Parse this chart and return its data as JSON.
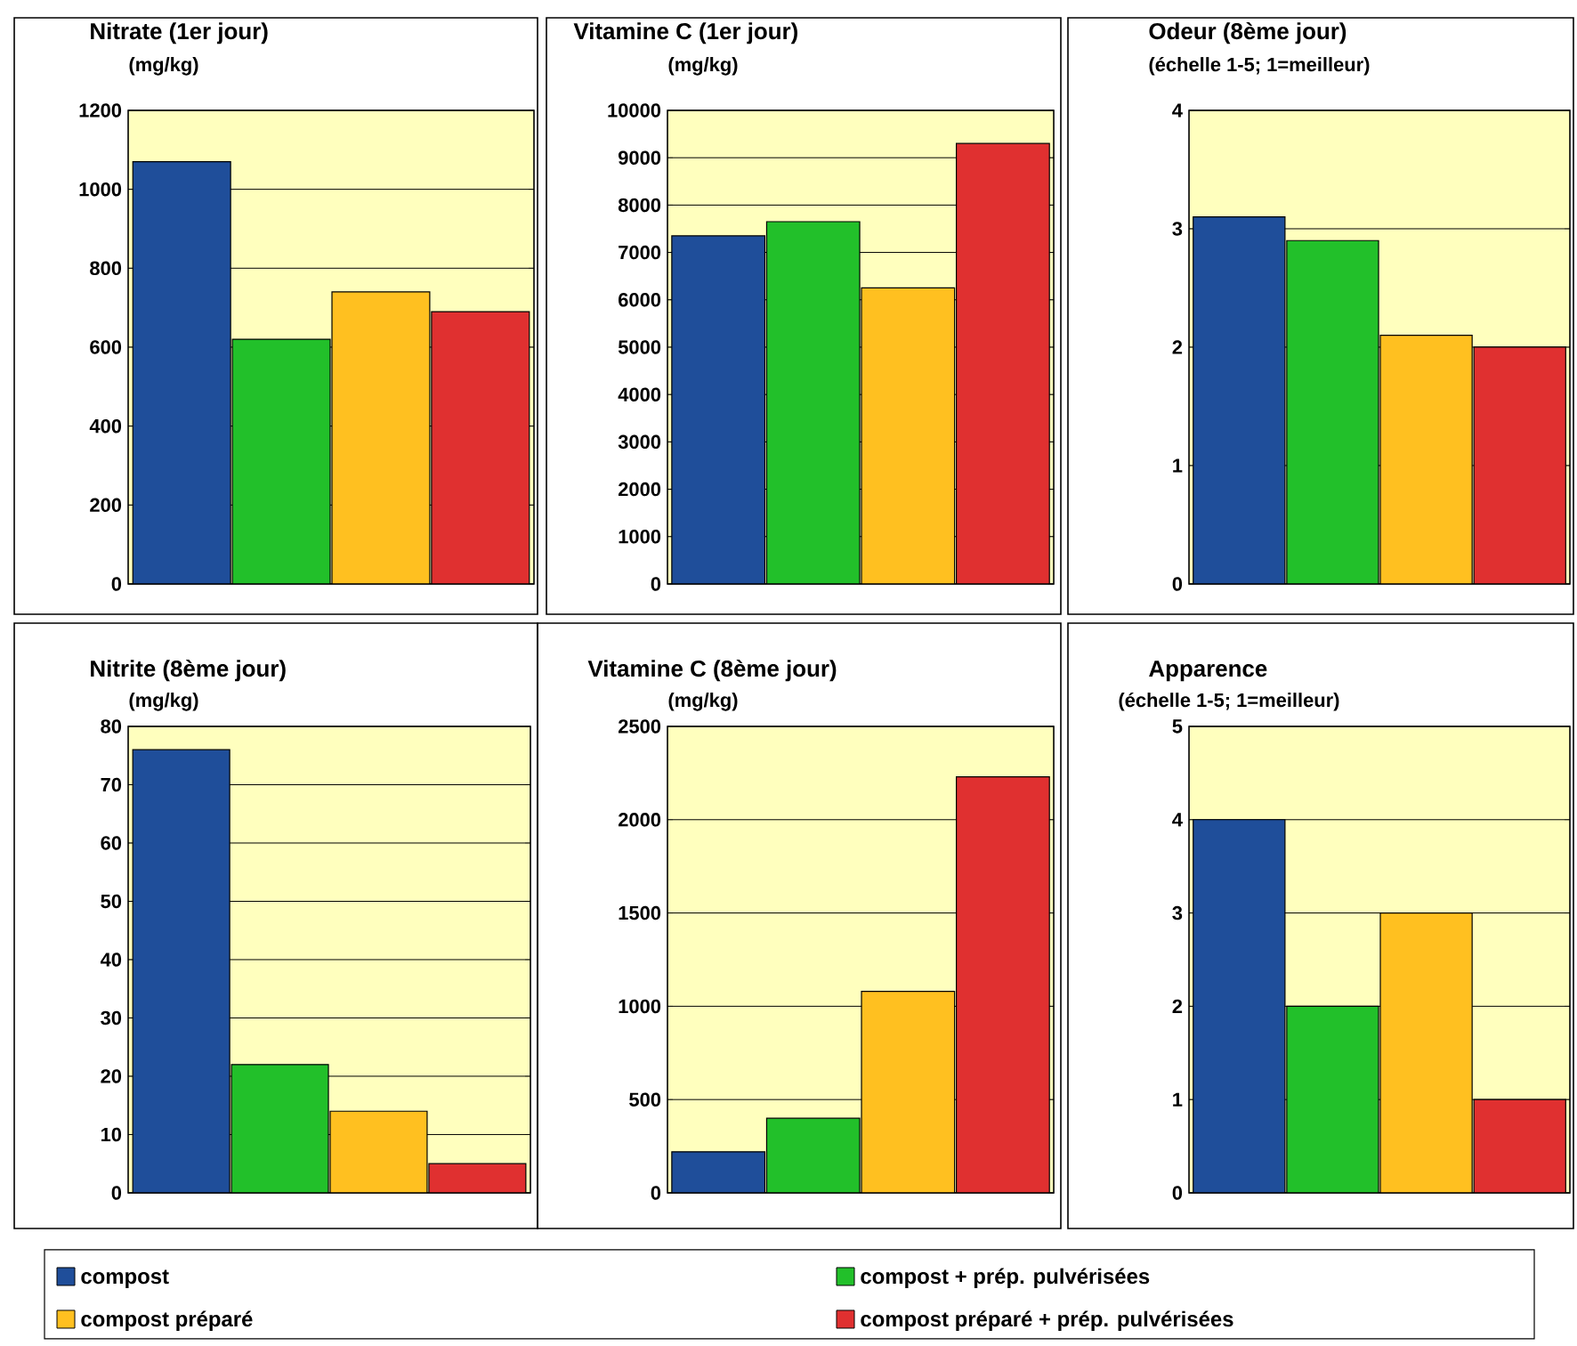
{
  "chart_data": [
    {
      "type": "bar",
      "title": "Nitrate (1er jour)",
      "subtitle": "(mg/kg)",
      "categories": [
        null
      ],
      "ylim": [
        0,
        1200
      ],
      "yticks": [
        0,
        200,
        400,
        600,
        800,
        1000,
        1200
      ],
      "grid": "y",
      "legend": "bottom",
      "series": [
        {
          "name": "compost",
          "color": "#1f4e9a",
          "values": [
            1070
          ]
        },
        {
          "name": "compost + prép. pulvérisées",
          "color": "#22c02a",
          "values": [
            620
          ]
        },
        {
          "name": "compost préparé",
          "color": "#ffc020",
          "values": [
            740
          ]
        },
        {
          "name": "compost préparé + prép. pulvérisées",
          "color": "#e03030",
          "values": [
            690
          ]
        }
      ]
    },
    {
      "type": "bar",
      "title": "Vitamine C (1er jour)",
      "subtitle": "(mg/kg)",
      "categories": [
        null
      ],
      "ylim": [
        0,
        10000
      ],
      "yticks": [
        0,
        1000,
        2000,
        3000,
        4000,
        5000,
        6000,
        7000,
        8000,
        9000,
        10000
      ],
      "grid": "y",
      "series": [
        {
          "color": "#1f4e9a",
          "values": [
            7350
          ]
        },
        {
          "color": "#22c02a",
          "values": [
            7650
          ]
        },
        {
          "color": "#ffc020",
          "values": [
            6250
          ]
        },
        {
          "color": "#e03030",
          "values": [
            9300
          ]
        }
      ]
    },
    {
      "type": "bar",
      "title": "Odeur (8ème jour)",
      "subtitle": "(échelle 1-5; 1=meilleur)",
      "categories": [
        null
      ],
      "ylim": [
        0,
        4
      ],
      "yticks": [
        0,
        1,
        2,
        3,
        4
      ],
      "grid": "y",
      "series": [
        {
          "color": "#1f4e9a",
          "values": [
            3.1
          ]
        },
        {
          "color": "#22c02a",
          "values": [
            2.9
          ]
        },
        {
          "color": "#ffc020",
          "values": [
            2.1
          ]
        },
        {
          "color": "#e03030",
          "values": [
            2.0
          ]
        }
      ]
    },
    {
      "type": "bar",
      "title": "Nitrite (8ème jour)",
      "subtitle": "(mg/kg)",
      "categories": [
        null
      ],
      "ylim": [
        0,
        80
      ],
      "yticks": [
        0,
        10,
        20,
        30,
        40,
        50,
        60,
        70,
        80
      ],
      "grid": "y",
      "series": [
        {
          "color": "#1f4e9a",
          "values": [
            76
          ]
        },
        {
          "color": "#22c02a",
          "values": [
            22
          ]
        },
        {
          "color": "#ffc020",
          "values": [
            14
          ]
        },
        {
          "color": "#e03030",
          "values": [
            5
          ]
        }
      ]
    },
    {
      "type": "bar",
      "title": "Vitamine C (8ème jour)",
      "subtitle": "(mg/kg)",
      "categories": [
        null
      ],
      "ylim": [
        0,
        2500
      ],
      "yticks": [
        0,
        500,
        1000,
        1500,
        2000,
        2500
      ],
      "grid": "y",
      "series": [
        {
          "color": "#1f4e9a",
          "values": [
            220
          ]
        },
        {
          "color": "#22c02a",
          "values": [
            400
          ]
        },
        {
          "color": "#ffc020",
          "values": [
            1080
          ]
        },
        {
          "color": "#e03030",
          "values": [
            2230
          ]
        }
      ]
    },
    {
      "type": "bar",
      "title": "Apparence",
      "subtitle": "(échelle 1-5; 1=meilleur)",
      "categories": [
        null
      ],
      "ylim": [
        0,
        5
      ],
      "yticks": [
        0,
        1,
        2,
        3,
        4,
        5
      ],
      "grid": "y",
      "series": [
        {
          "color": "#1f4e9a",
          "values": [
            4
          ]
        },
        {
          "color": "#22c02a",
          "values": [
            2
          ]
        },
        {
          "color": "#ffc020",
          "values": [
            3
          ]
        },
        {
          "color": "#e03030",
          "values": [
            1
          ]
        }
      ]
    }
  ]
}
